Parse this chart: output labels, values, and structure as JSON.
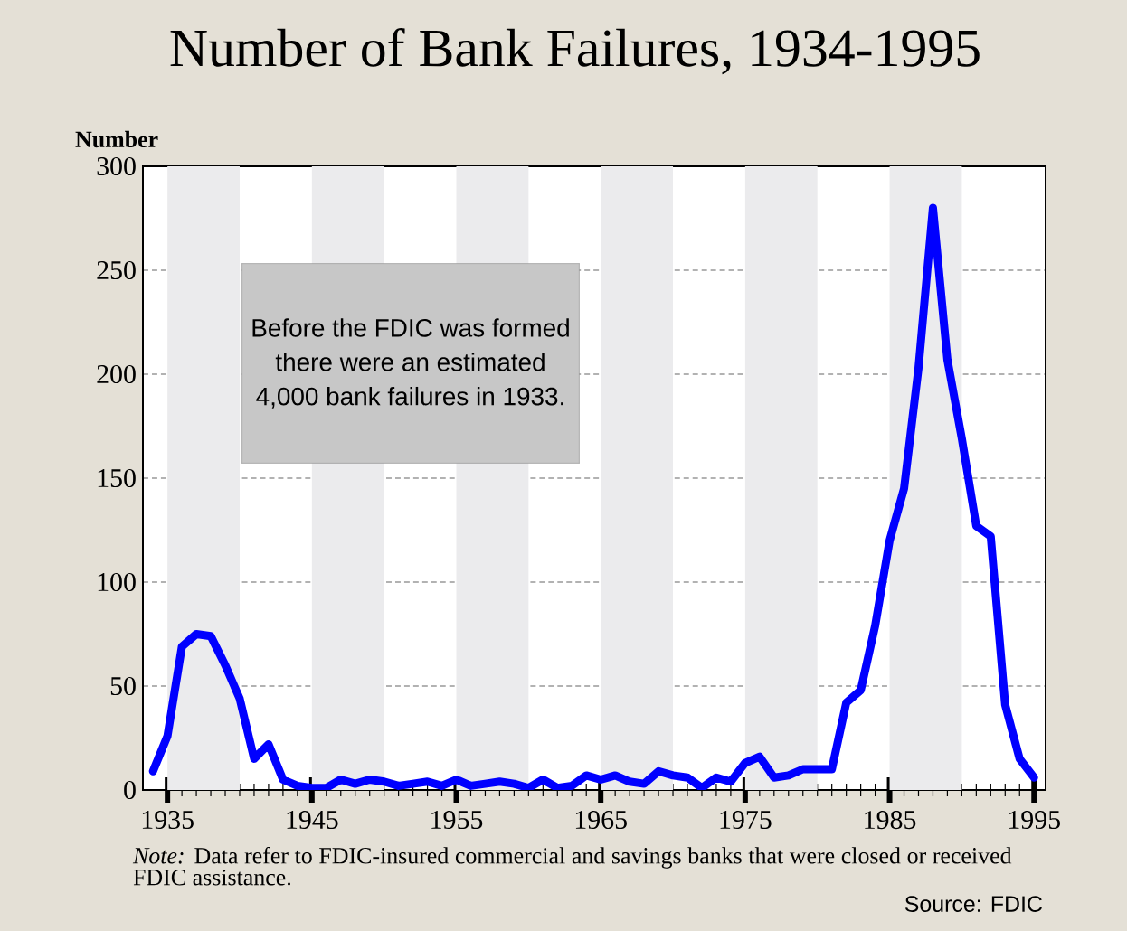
{
  "chart_data": {
    "type": "line",
    "title": "Number of Bank Failures, 1934-1995",
    "ylabel": "Number",
    "x": [
      1934,
      1935,
      1936,
      1937,
      1938,
      1939,
      1940,
      1941,
      1942,
      1943,
      1944,
      1945,
      1946,
      1947,
      1948,
      1949,
      1950,
      1951,
      1952,
      1953,
      1954,
      1955,
      1956,
      1957,
      1958,
      1959,
      1960,
      1961,
      1962,
      1963,
      1964,
      1965,
      1966,
      1967,
      1968,
      1969,
      1970,
      1971,
      1972,
      1973,
      1974,
      1975,
      1976,
      1977,
      1978,
      1979,
      1980,
      1981,
      1982,
      1983,
      1984,
      1985,
      1986,
      1987,
      1988,
      1989,
      1990,
      1991,
      1992,
      1993,
      1994,
      1995
    ],
    "series": [
      {
        "color": "#0000ff",
        "values": [
          9,
          26,
          69,
          75,
          74,
          60,
          44,
          15,
          22,
          5,
          2,
          1,
          1,
          5,
          3,
          5,
          4,
          2,
          3,
          4,
          2,
          5,
          2,
          3,
          4,
          3,
          1,
          5,
          1,
          2,
          7,
          5,
          7,
          4,
          3,
          9,
          7,
          6,
          1,
          6,
          4,
          13,
          16,
          6,
          7,
          10,
          10,
          10,
          42,
          48,
          79,
          120,
          145,
          203,
          280,
          207,
          169,
          127,
          122,
          41,
          15,
          6
        ]
      }
    ],
    "xlim": [
      1933.3,
      1995.8
    ],
    "ylim": [
      0,
      300
    ],
    "xticks": [
      1935,
      1945,
      1955,
      1965,
      1975,
      1985,
      1995
    ],
    "yticks": [
      0,
      50,
      100,
      150,
      200,
      250,
      300
    ],
    "grid": "y",
    "line_style": "solid",
    "marker": "none",
    "bands": [
      {
        "axis": "x",
        "from": 1935,
        "to": 1940,
        "color": "#ebebed"
      },
      {
        "axis": "x",
        "from": 1945,
        "to": 1950,
        "color": "#ebebed"
      },
      {
        "axis": "x",
        "from": 1955,
        "to": 1960,
        "color": "#ebebed"
      },
      {
        "axis": "x",
        "from": 1965,
        "to": 1970,
        "color": "#ebebed"
      },
      {
        "axis": "x",
        "from": 1975,
        "to": 1980,
        "color": "#ebebed"
      },
      {
        "axis": "x",
        "from": 1985,
        "to": 1990,
        "color": "#ebebed"
      }
    ],
    "annotations": [
      "Before the FDIC was formed there were an estimated 4,000 bank failures in 1933.",
      "*Note:* Data refer to FDIC-insured commercial and savings banks that were closed or received FDIC assistance.",
      "Source: FDIC"
    ]
  }
}
